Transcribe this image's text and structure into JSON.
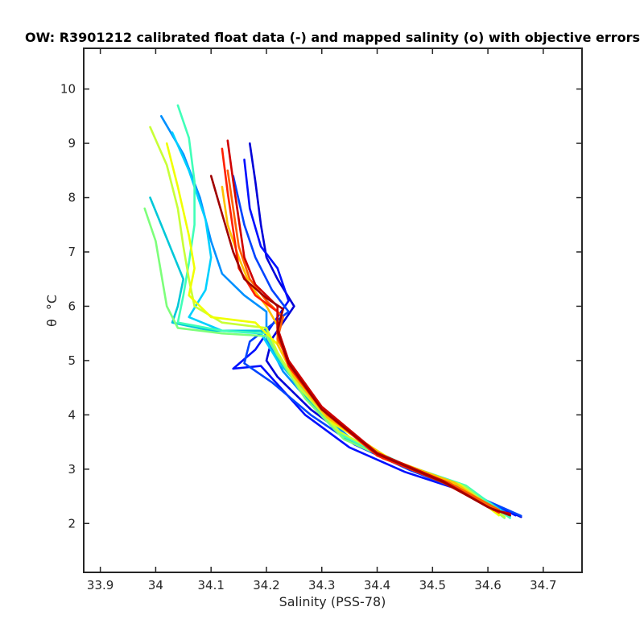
{
  "chart_data": {
    "type": "line",
    "title": "OW: R3901212 calibrated float data (-) and mapped salinity (o) with objective errors",
    "xlabel": "Salinity (PSS-78)",
    "ylabel_symbol": "θ",
    "ylabel_unit": "°C",
    "xlim": [
      33.87,
      34.77
    ],
    "ylim": [
      1.1,
      10.75
    ],
    "xticks": [
      33.9,
      34,
      34.1,
      34.2,
      34.3,
      34.4,
      34.5,
      34.6,
      34.7
    ],
    "xtick_labels": [
      "33.9",
      "34",
      "34.1",
      "34.2",
      "34.3",
      "34.4",
      "34.5",
      "34.6",
      "34.7"
    ],
    "yticks": [
      2,
      3,
      4,
      5,
      6,
      7,
      8,
      9,
      10
    ],
    "ytick_labels": [
      "2",
      "3",
      "4",
      "5",
      "6",
      "7",
      "8",
      "9",
      "10"
    ],
    "grid": false,
    "colormap": "jet",
    "color_encodes": "profile number",
    "series": [
      {
        "color": "#0000d8",
        "points": [
          [
            34.17,
            9.0
          ],
          [
            34.18,
            8.3
          ],
          [
            34.19,
            7.5
          ],
          [
            34.2,
            6.9
          ],
          [
            34.22,
            6.5
          ],
          [
            34.25,
            6.0
          ],
          [
            34.21,
            5.4
          ],
          [
            34.2,
            5.0
          ],
          [
            34.22,
            4.7
          ],
          [
            34.28,
            4.1
          ],
          [
            34.36,
            3.5
          ],
          [
            34.46,
            3.0
          ],
          [
            34.57,
            2.55
          ],
          [
            34.66,
            2.12
          ]
        ]
      },
      {
        "color": "#0010ff",
        "points": [
          [
            34.16,
            8.7
          ],
          [
            34.17,
            7.8
          ],
          [
            34.19,
            7.1
          ],
          [
            34.22,
            6.7
          ],
          [
            34.24,
            6.1
          ],
          [
            34.18,
            5.2
          ],
          [
            34.14,
            4.85
          ],
          [
            34.19,
            4.9
          ],
          [
            34.27,
            4.0
          ],
          [
            34.35,
            3.4
          ],
          [
            34.45,
            2.95
          ],
          [
            34.57,
            2.55
          ],
          [
            34.65,
            2.15
          ]
        ]
      },
      {
        "color": "#0044ff",
        "points": [
          [
            34.14,
            8.4
          ],
          [
            34.16,
            7.5
          ],
          [
            34.18,
            6.9
          ],
          [
            34.21,
            6.3
          ],
          [
            34.24,
            5.9
          ],
          [
            34.17,
            5.35
          ],
          [
            34.16,
            4.95
          ],
          [
            34.21,
            4.6
          ],
          [
            34.28,
            4.0
          ],
          [
            34.36,
            3.45
          ],
          [
            34.46,
            2.98
          ],
          [
            34.58,
            2.5
          ],
          [
            34.66,
            2.14
          ]
        ]
      },
      {
        "color": "#0090ff",
        "points": [
          [
            34.01,
            9.5
          ],
          [
            34.05,
            8.8
          ],
          [
            34.08,
            8.0
          ],
          [
            34.1,
            7.2
          ],
          [
            34.12,
            6.6
          ],
          [
            34.16,
            6.2
          ],
          [
            34.2,
            5.9
          ],
          [
            34.2,
            5.4
          ],
          [
            34.23,
            4.8
          ],
          [
            34.29,
            4.1
          ],
          [
            34.36,
            3.5
          ],
          [
            34.46,
            3.02
          ],
          [
            34.57,
            2.6
          ],
          [
            34.64,
            2.15
          ]
        ]
      },
      {
        "color": "#00d0ff",
        "points": [
          [
            34.03,
            9.2
          ],
          [
            34.06,
            8.5
          ],
          [
            34.09,
            7.6
          ],
          [
            34.1,
            6.9
          ],
          [
            34.09,
            6.3
          ],
          [
            34.06,
            5.8
          ],
          [
            34.12,
            5.55
          ],
          [
            34.19,
            5.5
          ],
          [
            34.22,
            5.0
          ],
          [
            34.27,
            4.4
          ],
          [
            34.34,
            3.6
          ],
          [
            34.45,
            3.05
          ],
          [
            34.56,
            2.65
          ],
          [
            34.64,
            2.13
          ]
        ]
      },
      {
        "color": "#00c8d8",
        "points": [
          [
            33.99,
            8.0
          ],
          [
            34.01,
            7.5
          ],
          [
            34.03,
            7.0
          ],
          [
            34.05,
            6.5
          ],
          [
            34.04,
            6.0
          ],
          [
            34.03,
            5.7
          ],
          [
            34.1,
            5.55
          ],
          [
            34.2,
            5.55
          ],
          [
            34.22,
            5.05
          ],
          [
            34.27,
            4.35
          ],
          [
            34.34,
            3.6
          ],
          [
            34.45,
            3.05
          ],
          [
            34.56,
            2.65
          ],
          [
            34.63,
            2.12
          ]
        ]
      },
      {
        "color": "#40ffb8",
        "points": [
          [
            34.04,
            9.7
          ],
          [
            34.06,
            9.1
          ],
          [
            34.07,
            8.3
          ],
          [
            34.07,
            7.5
          ],
          [
            34.06,
            6.8
          ],
          [
            34.05,
            6.2
          ],
          [
            34.04,
            5.7
          ],
          [
            34.12,
            5.55
          ],
          [
            34.2,
            5.5
          ],
          [
            34.22,
            5.1
          ],
          [
            34.27,
            4.4
          ],
          [
            34.34,
            3.6
          ],
          [
            34.45,
            3.08
          ],
          [
            34.56,
            2.7
          ],
          [
            34.64,
            2.1
          ]
        ]
      },
      {
        "color": "#7dff7a",
        "points": [
          [
            33.98,
            7.8
          ],
          [
            34.0,
            7.2
          ],
          [
            34.01,
            6.6
          ],
          [
            34.02,
            6.0
          ],
          [
            34.04,
            5.6
          ],
          [
            34.12,
            5.5
          ],
          [
            34.2,
            5.45
          ],
          [
            34.22,
            5.1
          ],
          [
            34.27,
            4.3
          ],
          [
            34.34,
            3.55
          ],
          [
            34.45,
            3.05
          ],
          [
            34.56,
            2.68
          ],
          [
            34.63,
            2.1
          ]
        ]
      },
      {
        "color": "#c8ff37",
        "points": [
          [
            33.99,
            9.3
          ],
          [
            34.02,
            8.6
          ],
          [
            34.04,
            7.8
          ],
          [
            34.05,
            7.1
          ],
          [
            34.06,
            6.5
          ],
          [
            34.07,
            6.0
          ],
          [
            34.12,
            5.7
          ],
          [
            34.2,
            5.6
          ],
          [
            34.22,
            5.15
          ],
          [
            34.26,
            4.5
          ],
          [
            34.33,
            3.7
          ],
          [
            34.44,
            3.1
          ],
          [
            34.55,
            2.72
          ],
          [
            34.63,
            2.12
          ]
        ]
      },
      {
        "color": "#f0ff00",
        "points": [
          [
            34.02,
            9.0
          ],
          [
            34.04,
            8.2
          ],
          [
            34.06,
            7.3
          ],
          [
            34.07,
            6.7
          ],
          [
            34.06,
            6.2
          ],
          [
            34.1,
            5.8
          ],
          [
            34.18,
            5.7
          ],
          [
            34.22,
            5.3
          ],
          [
            34.25,
            4.7
          ],
          [
            34.32,
            3.85
          ],
          [
            34.43,
            3.15
          ],
          [
            34.55,
            2.7
          ],
          [
            34.62,
            2.15
          ]
        ]
      },
      {
        "color": "#ffc000",
        "points": [
          [
            34.12,
            8.2
          ],
          [
            34.13,
            7.5
          ],
          [
            34.15,
            6.9
          ],
          [
            34.17,
            6.4
          ],
          [
            34.2,
            6.0
          ],
          [
            34.22,
            5.65
          ],
          [
            34.22,
            5.3
          ],
          [
            34.25,
            4.7
          ],
          [
            34.31,
            3.95
          ],
          [
            34.42,
            3.2
          ],
          [
            34.54,
            2.75
          ],
          [
            34.62,
            2.2
          ]
        ]
      },
      {
        "color": "#ff6000",
        "points": [
          [
            34.13,
            8.5
          ],
          [
            34.14,
            7.8
          ],
          [
            34.15,
            7.1
          ],
          [
            34.17,
            6.5
          ],
          [
            34.2,
            6.1
          ],
          [
            34.23,
            5.8
          ],
          [
            34.22,
            5.4
          ],
          [
            34.25,
            4.8
          ],
          [
            34.31,
            4.0
          ],
          [
            34.41,
            3.2
          ],
          [
            34.53,
            2.75
          ],
          [
            34.62,
            2.25
          ]
        ]
      },
      {
        "color": "#ff2000",
        "points": [
          [
            34.12,
            8.9
          ],
          [
            34.13,
            8.1
          ],
          [
            34.14,
            7.4
          ],
          [
            34.15,
            6.7
          ],
          [
            34.18,
            6.2
          ],
          [
            34.22,
            5.9
          ],
          [
            34.22,
            5.5
          ],
          [
            34.24,
            4.9
          ],
          [
            34.3,
            4.1
          ],
          [
            34.4,
            3.25
          ],
          [
            34.52,
            2.75
          ],
          [
            34.62,
            2.2
          ]
        ]
      },
      {
        "color": "#d00000",
        "points": [
          [
            34.13,
            9.05
          ],
          [
            34.14,
            8.3
          ],
          [
            34.15,
            7.6
          ],
          [
            34.16,
            6.9
          ],
          [
            34.18,
            6.4
          ],
          [
            34.22,
            6.0
          ],
          [
            34.22,
            5.6
          ],
          [
            34.24,
            5.0
          ],
          [
            34.3,
            4.15
          ],
          [
            34.4,
            3.3
          ],
          [
            34.52,
            2.78
          ],
          [
            34.61,
            2.25
          ],
          [
            34.64,
            2.18
          ]
        ]
      },
      {
        "color": "#a00000",
        "points": [
          [
            34.1,
            8.4
          ],
          [
            34.12,
            7.7
          ],
          [
            34.14,
            7.0
          ],
          [
            34.16,
            6.5
          ],
          [
            34.2,
            6.15
          ],
          [
            34.23,
            5.95
          ],
          [
            34.22,
            5.55
          ],
          [
            34.24,
            4.95
          ],
          [
            34.3,
            4.1
          ],
          [
            34.4,
            3.28
          ],
          [
            34.52,
            2.76
          ],
          [
            34.6,
            2.3
          ],
          [
            34.64,
            2.15
          ]
        ]
      }
    ]
  }
}
